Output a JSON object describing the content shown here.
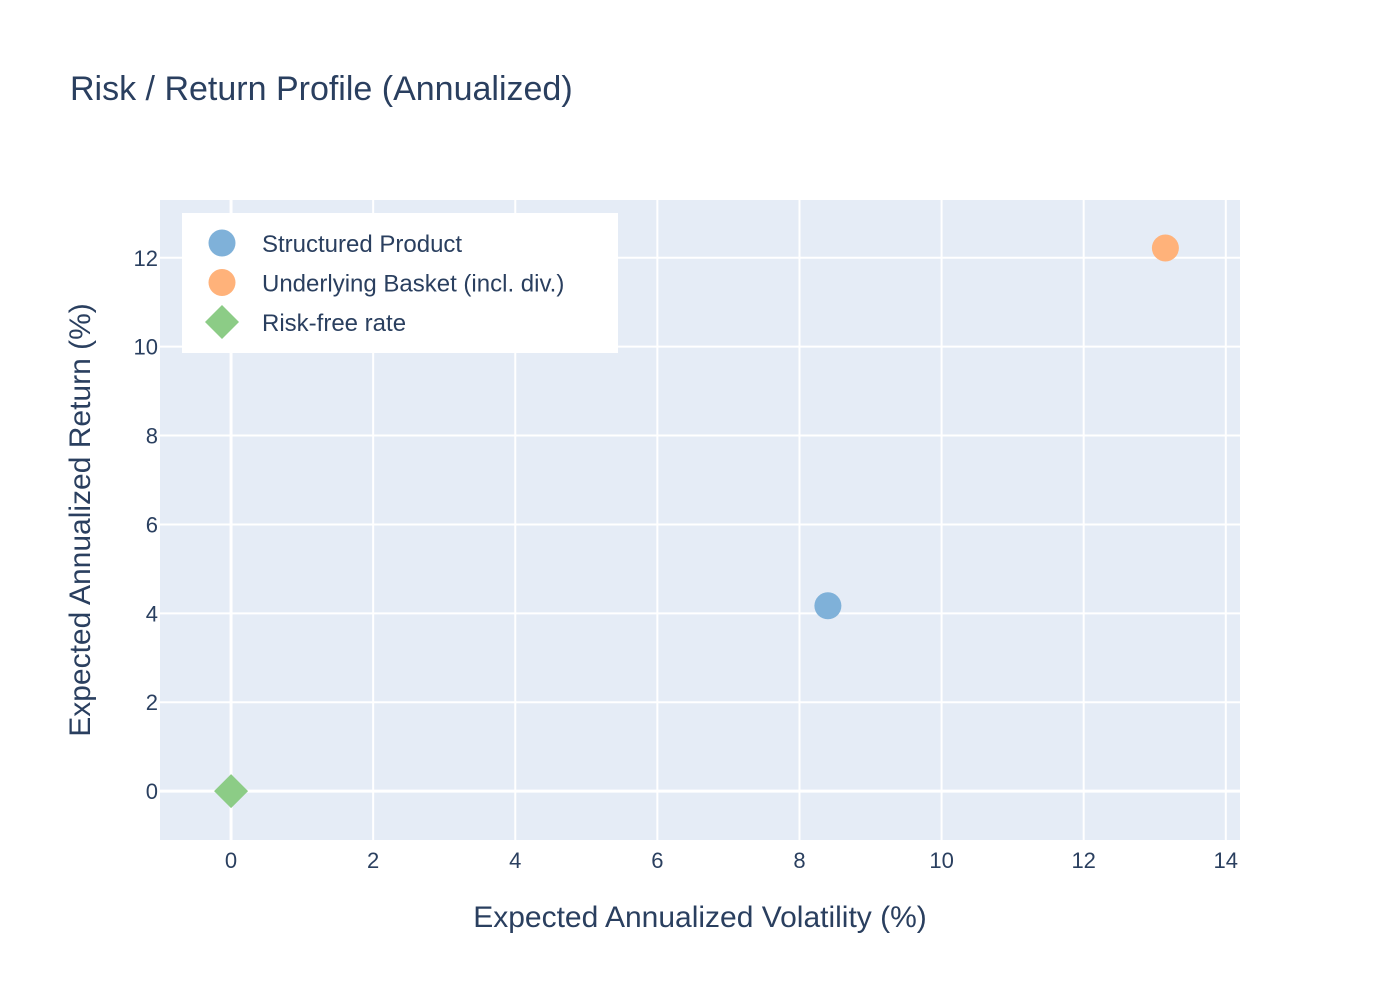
{
  "chart_data": {
    "type": "scatter",
    "title": "Risk / Return Profile (Annualized)",
    "xlabel": "Expected Annualized Volatility (%)",
    "ylabel": "Expected Annualized Return (%)",
    "xlim": [
      -1,
      14.2
    ],
    "ylim": [
      -1.1,
      13.3
    ],
    "xticks": [
      0,
      2,
      4,
      6,
      8,
      10,
      12,
      14
    ],
    "yticks": [
      0,
      2,
      4,
      6,
      8,
      10,
      12
    ],
    "grid": true,
    "legend_position": "top-left",
    "series": [
      {
        "name": "Structured Product",
        "marker": "circle",
        "color": "#7fb1d9",
        "points": [
          {
            "x": 8.4,
            "y": 4.17
          }
        ]
      },
      {
        "name": "Underlying Basket (incl. div.)",
        "marker": "circle",
        "color": "#ffb27a",
        "points": [
          {
            "x": 13.15,
            "y": 12.22
          }
        ]
      },
      {
        "name": "Risk-free rate",
        "marker": "diamond",
        "color": "#8ccc86",
        "points": [
          {
            "x": 0,
            "y": 0
          }
        ]
      }
    ],
    "plot_bg": "#e5ecf6",
    "grid_color": "#ffffff",
    "text_color": "#2a3f5f"
  }
}
